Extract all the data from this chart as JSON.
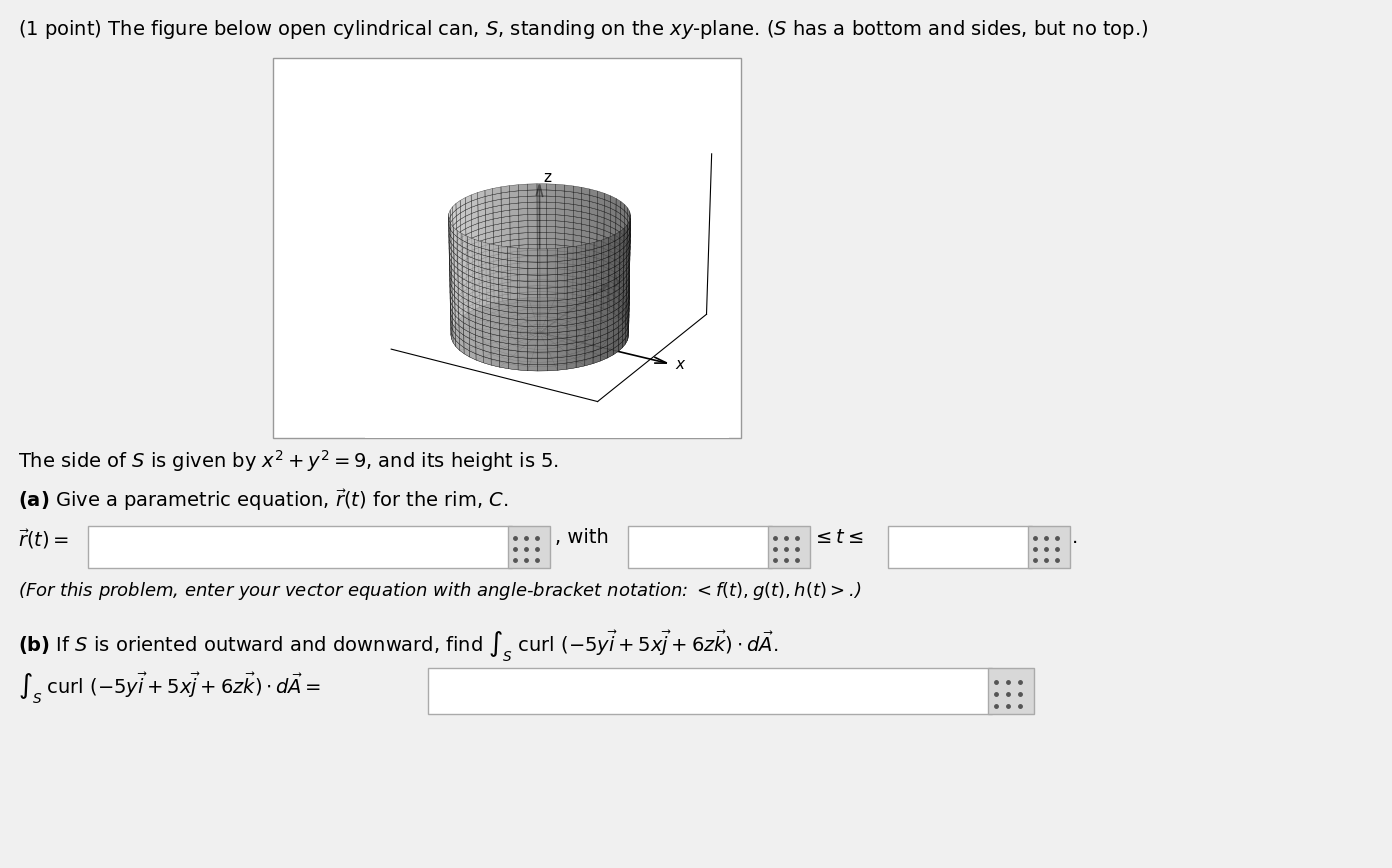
{
  "title_text": "(1 point) The figure below open cylindrical can, $S$, standing on the $xy$-plane. ($S$ has a bottom and sides, but no top.)",
  "side_text": "The side of $S$ is given by $x^2 + y^2 = 9$, and its height is 5.",
  "part_a_label": "(a) Give a parametric equation, $\\vec{r}(t)$ for the rim, $C$.",
  "part_a_eq": "$\\vec{r}(t) =$",
  "with_text": ", with",
  "leq_t_leq": "$\\leq t \\leq$",
  "italic_note": "(For this problem, enter your vector equation with angle-bracket notation: $< f(t), g(t), h(t) >$.)",
  "part_b_label": "(b) If $S$ is oriented outward and downward, find $\\int_S$ curl $(-5y\\vec{i} + 5x\\vec{j} + 6z\\vec{k}) \\cdot d\\vec{A}$.",
  "part_b_eq": "$\\int_S$ curl $(-5y\\vec{i} + 5x\\vec{j} + 6z\\vec{k}) \\cdot d\\vec{A} =$",
  "bg_color": "#f0f0f0",
  "box_bg": "#ffffff",
  "box_border": "#bbbbbb",
  "btn_bg": "#d0d0d0"
}
